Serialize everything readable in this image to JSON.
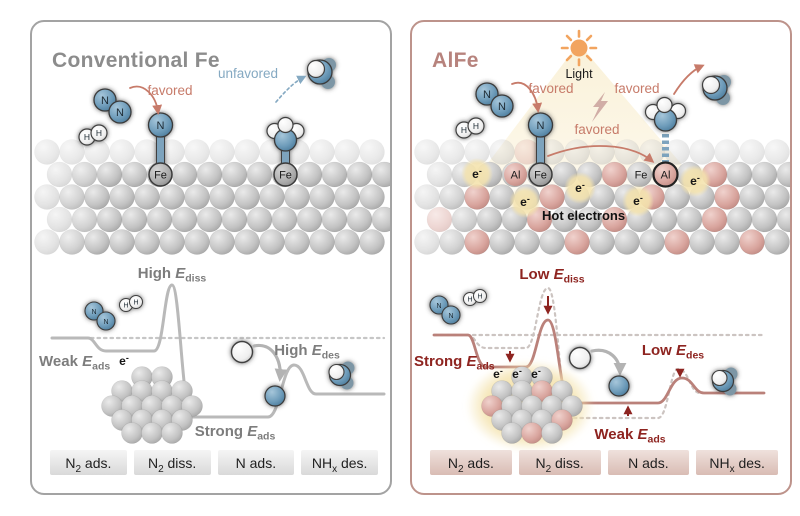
{
  "shared": {
    "E": "E",
    "electron": {
      "base": "e",
      "sup": "-"
    },
    "atoms": {
      "N": "N",
      "H": "H",
      "Fe": "Fe",
      "Al": "Al"
    }
  },
  "left": {
    "title": "Conventional Fe",
    "favored": "favored",
    "unfavored": "unfavored",
    "diagram": {
      "ediss": {
        "pre": "High ",
        "sub": "diss"
      },
      "eads_weak": {
        "pre": "Weak ",
        "sub": "ads"
      },
      "eads_strong": {
        "pre": "Strong ",
        "sub": "ads"
      },
      "edes": {
        "pre": "High ",
        "sub": "des"
      }
    },
    "steps": [
      {
        "pre": "N",
        "sub": "2",
        "post": " ads."
      },
      {
        "pre": "N",
        "sub": "2",
        "post": " diss."
      },
      {
        "pre": "N",
        "sub": "",
        "post": " ads."
      },
      {
        "pre": "NH",
        "sub": "x",
        "post": " des."
      }
    ]
  },
  "right": {
    "title": "AlFe",
    "light": "Light",
    "favored1": "favored",
    "favored2": "favored",
    "favored3": "favored",
    "hot_electrons": "Hot electrons",
    "diagram": {
      "ediss": {
        "pre": "Low ",
        "sub": "diss"
      },
      "eads_strong": {
        "pre": "Strong ",
        "sub": "ads"
      },
      "eads_weak": {
        "pre": "Weak ",
        "sub": "ads"
      },
      "edes": {
        "pre": "Low ",
        "sub": "des"
      }
    },
    "steps": [
      {
        "pre": "N",
        "sub": "2",
        "post": " ads."
      },
      {
        "pre": "N",
        "sub": "2",
        "post": " diss."
      },
      {
        "pre": "N",
        "sub": "",
        "post": " ads."
      },
      {
        "pre": "NH",
        "sub": "x",
        "post": " des."
      }
    ]
  },
  "colors": {
    "left_border": "#a3a3a3",
    "left_title": "#8c8c8c",
    "right_border": "#bd938b",
    "right_title": "#b7837d",
    "favored_text": "#c77b6a",
    "unfavored_text": "#85a9c2",
    "dark_red_label": "#8e2420",
    "gray_label": "#7d7d7d",
    "curve_gray": "#b9b9b9",
    "curve_red": "#ba817a",
    "sun": "#f2a45f",
    "electron_glow": "#f4e3ae",
    "n_sphere": "#6e9cba",
    "al_sphere": "#d9a8a2",
    "surface_sphere": "#c4c4c4"
  }
}
